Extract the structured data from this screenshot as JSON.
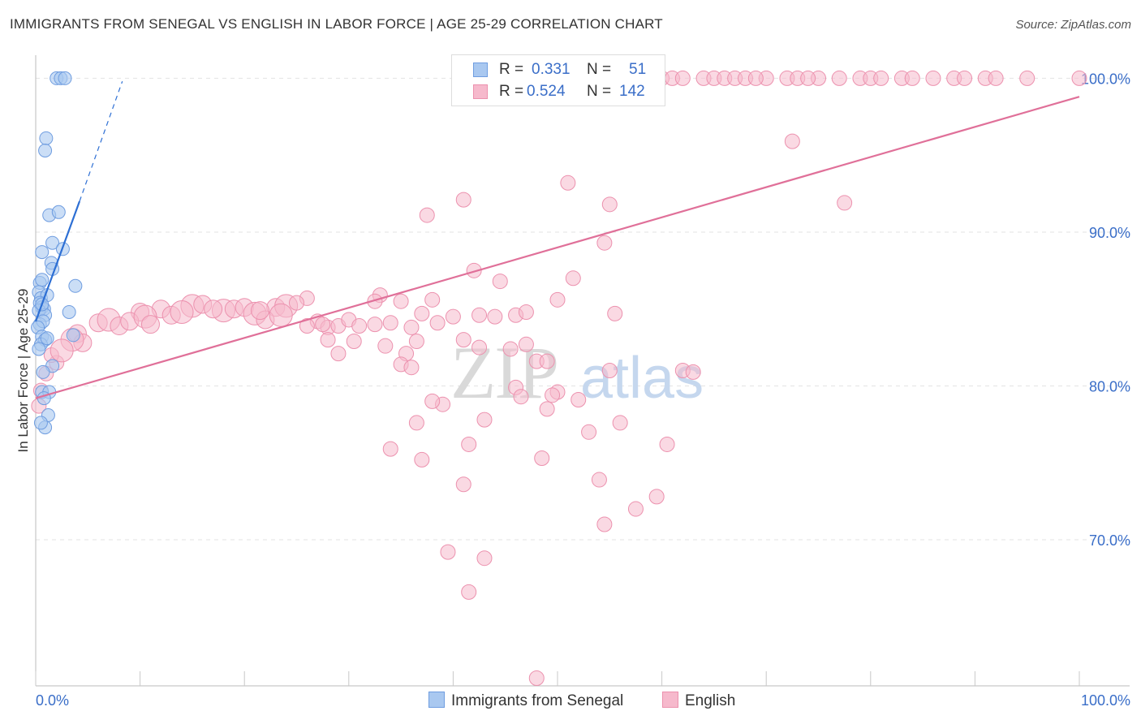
{
  "header": {
    "title": "IMMIGRANTS FROM SENEGAL VS ENGLISH IN LABOR FORCE | AGE 25-29 CORRELATION CHART",
    "source": "Source: ZipAtlas.com"
  },
  "legend": {
    "rows": [
      {
        "r_label": "R =",
        "r_value": "0.331",
        "n_label": "N =",
        "n_value": "51"
      },
      {
        "r_label": "R =",
        "r_value": "0.524",
        "n_label": "N =",
        "n_value": "142"
      }
    ]
  },
  "bottom_legend": {
    "series1": "Immigrants from Senegal",
    "series2": "English"
  },
  "colors": {
    "blue_fill": "#a9c8f0",
    "blue_stroke": "#6f9de0",
    "blue_line": "#2d6fd4",
    "pink_fill": "#f6b9cc",
    "pink_stroke": "#ec91ae",
    "pink_line": "#e07099",
    "axis_text": "#3a6ec8",
    "grid": "#e3e3e3"
  },
  "chart_data": {
    "type": "scatter",
    "title": "IMMIGRANTS FROM SENEGAL VS ENGLISH IN LABOR FORCE | AGE 25-29 CORRELATION CHART",
    "xlabel": "",
    "ylabel": "In Labor Force | Age 25-29",
    "xlim": [
      0,
      100
    ],
    "ylim": [
      60.5,
      101.5
    ],
    "x_tick_labels": [
      "0.0%",
      "100.0%"
    ],
    "y_ticks": [
      70,
      80,
      90,
      100
    ],
    "y_tick_labels": [
      "70.0%",
      "80.0%",
      "90.0%",
      "100.0%"
    ],
    "grid": true,
    "legend_position": "top-center",
    "watermark": "ZIPatlas",
    "series": [
      {
        "name": "Immigrants from Senegal",
        "R": 0.331,
        "N": 51,
        "trend": {
          "x": [
            0.0,
            4.2
          ],
          "y": [
            84.2,
            92.0
          ],
          "dashed_to": [
            8.3,
            99.8
          ]
        },
        "points": [
          [
            2.0,
            100
          ],
          [
            2.4,
            100
          ],
          [
            2.8,
            100
          ],
          [
            1.0,
            96.1
          ],
          [
            0.9,
            95.3
          ],
          [
            1.3,
            91.1
          ],
          [
            2.2,
            91.3
          ],
          [
            1.6,
            89.3
          ],
          [
            0.6,
            88.7
          ],
          [
            2.6,
            88.9
          ],
          [
            1.5,
            88.0
          ],
          [
            1.6,
            87.6
          ],
          [
            3.8,
            86.5
          ],
          [
            0.4,
            86.7
          ],
          [
            0.6,
            86.9
          ],
          [
            0.3,
            86.1
          ],
          [
            0.5,
            85.7
          ],
          [
            1.1,
            85.9
          ],
          [
            0.4,
            85.4
          ],
          [
            0.6,
            85.1
          ],
          [
            0.8,
            85.0
          ],
          [
            0.3,
            84.9
          ],
          [
            3.2,
            84.8
          ],
          [
            0.9,
            84.6
          ],
          [
            0.4,
            84.0
          ],
          [
            0.7,
            84.2
          ],
          [
            0.2,
            83.8
          ],
          [
            0.6,
            83.2
          ],
          [
            0.9,
            83.0
          ],
          [
            3.6,
            83.3
          ],
          [
            0.5,
            82.7
          ],
          [
            0.3,
            82.4
          ],
          [
            1.6,
            81.3
          ],
          [
            0.7,
            80.9
          ],
          [
            0.6,
            79.6
          ],
          [
            1.3,
            79.6
          ],
          [
            0.8,
            79.2
          ],
          [
            1.2,
            78.1
          ],
          [
            0.9,
            77.3
          ],
          [
            0.5,
            77.6
          ],
          [
            1.1,
            83.1
          ],
          [
            0.6,
            85.3
          ]
        ]
      },
      {
        "name": "English",
        "R": 0.524,
        "N": 142,
        "trend": {
          "x": [
            0,
            100
          ],
          "y": [
            79.2,
            98.8
          ]
        },
        "points": [
          [
            48.5,
            100
          ],
          [
            51,
            100
          ],
          [
            53,
            100
          ],
          [
            55,
            100
          ],
          [
            58,
            100
          ],
          [
            60,
            100
          ],
          [
            61,
            100
          ],
          [
            62,
            100
          ],
          [
            64,
            100
          ],
          [
            65,
            100
          ],
          [
            66,
            100
          ],
          [
            67,
            100
          ],
          [
            68,
            100
          ],
          [
            70,
            100
          ],
          [
            72,
            100
          ],
          [
            73,
            100
          ],
          [
            75,
            100
          ],
          [
            77,
            100
          ],
          [
            79,
            100
          ],
          [
            80,
            100
          ],
          [
            81,
            100
          ],
          [
            83,
            100
          ],
          [
            84,
            100
          ],
          [
            86,
            100
          ],
          [
            88,
            100
          ],
          [
            89,
            100
          ],
          [
            91,
            100
          ],
          [
            92,
            100
          ],
          [
            95,
            100
          ],
          [
            100,
            100
          ],
          [
            56.5,
            100
          ],
          [
            59,
            100
          ],
          [
            69,
            100
          ],
          [
            74,
            100
          ],
          [
            72.5,
            95.9
          ],
          [
            51,
            93.2
          ],
          [
            41,
            92.1
          ],
          [
            55,
            91.8
          ],
          [
            77.5,
            91.9
          ],
          [
            37.5,
            91.1
          ],
          [
            54.5,
            89.3
          ],
          [
            42,
            87.5
          ],
          [
            44.5,
            86.8
          ],
          [
            51.5,
            87.0
          ],
          [
            33,
            85.9
          ],
          [
            26,
            85.7
          ],
          [
            38,
            85.6
          ],
          [
            50,
            85.6
          ],
          [
            32.5,
            85.5
          ],
          [
            35,
            85.5
          ],
          [
            40,
            84.5
          ],
          [
            42.5,
            84.6
          ],
          [
            23,
            85.1
          ],
          [
            37,
            84.7
          ],
          [
            15,
            85.2
          ],
          [
            12,
            85.0
          ],
          [
            10,
            84.8
          ],
          [
            18,
            84.9
          ],
          [
            19,
            85.0
          ],
          [
            20,
            85.1
          ],
          [
            21,
            84.7
          ],
          [
            22,
            84.3
          ],
          [
            6,
            84.1
          ],
          [
            7,
            84.3
          ],
          [
            8,
            83.9
          ],
          [
            9,
            84.2
          ],
          [
            10.5,
            84.5
          ],
          [
            11,
            84.0
          ],
          [
            13,
            84.6
          ],
          [
            14,
            84.8
          ],
          [
            16,
            85.3
          ],
          [
            17,
            85.0
          ],
          [
            24,
            85.2
          ],
          [
            25,
            85.4
          ],
          [
            27,
            84.2
          ],
          [
            28,
            83.8
          ],
          [
            29,
            83.9
          ],
          [
            30,
            84.3
          ],
          [
            31,
            83.9
          ],
          [
            34,
            84.1
          ],
          [
            36,
            83.8
          ],
          [
            38.5,
            84.1
          ],
          [
            30.5,
            82.9
          ],
          [
            33.5,
            82.6
          ],
          [
            35.5,
            82.1
          ],
          [
            28,
            83.0
          ],
          [
            26,
            83.9
          ],
          [
            27.5,
            84.0
          ],
          [
            4,
            83.4
          ],
          [
            4.5,
            82.8
          ],
          [
            3.5,
            83.0
          ],
          [
            2,
            81.5
          ],
          [
            1.5,
            82.0
          ],
          [
            2.5,
            82.3
          ],
          [
            1,
            80.8
          ],
          [
            0.5,
            79.7
          ],
          [
            0.3,
            78.7
          ],
          [
            29,
            82.1
          ],
          [
            36.5,
            82.9
          ],
          [
            41,
            83.0
          ],
          [
            42.5,
            82.5
          ],
          [
            47,
            82.7
          ],
          [
            45.5,
            82.4
          ],
          [
            48,
            81.6
          ],
          [
            49,
            81.6
          ],
          [
            35,
            81.4
          ],
          [
            36,
            81.2
          ],
          [
            55,
            81.0
          ],
          [
            62,
            81.0
          ],
          [
            63,
            80.9
          ],
          [
            46,
            79.9
          ],
          [
            50,
            79.6
          ],
          [
            39,
            78.8
          ],
          [
            38,
            79.0
          ],
          [
            49.5,
            79.4
          ],
          [
            49,
            78.5
          ],
          [
            52,
            79.1
          ],
          [
            46.5,
            79.3
          ],
          [
            36.5,
            77.6
          ],
          [
            43,
            77.8
          ],
          [
            53,
            77.0
          ],
          [
            56,
            77.6
          ],
          [
            41.5,
            76.2
          ],
          [
            60.5,
            76.2
          ],
          [
            34,
            75.9
          ],
          [
            37,
            75.2
          ],
          [
            48.5,
            75.3
          ],
          [
            41,
            73.6
          ],
          [
            54,
            73.9
          ],
          [
            59.5,
            72.8
          ],
          [
            57.5,
            72.0
          ],
          [
            54.5,
            71.0
          ],
          [
            39.5,
            69.2
          ],
          [
            43,
            68.8
          ],
          [
            41.5,
            66.6
          ],
          [
            48,
            61.0
          ],
          [
            32.5,
            84.0
          ],
          [
            21.5,
            84.9
          ],
          [
            23.5,
            84.6
          ],
          [
            46,
            84.6
          ],
          [
            55.5,
            84.7
          ],
          [
            44,
            84.5
          ],
          [
            47,
            84.8
          ]
        ]
      }
    ]
  }
}
